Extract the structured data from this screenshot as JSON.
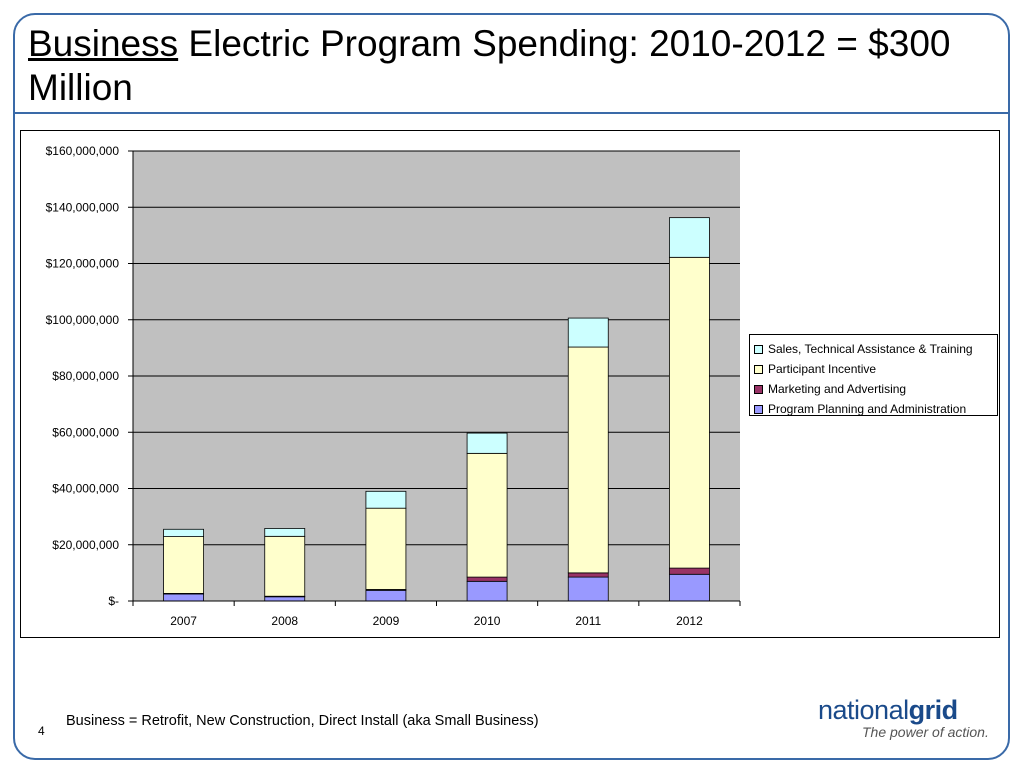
{
  "slide": {
    "title_underlined": "Business",
    "title_rest": " Electric Program Spending: 2010-2012 = $300 Million",
    "footnote": "Business = Retrofit, New Construction, Direct Install (aka Small Business)",
    "page_number": "4"
  },
  "logo": {
    "brand_regular": "national",
    "brand_bold": "grid",
    "tagline": "The power of action."
  },
  "colors": {
    "frame": "#3a6aa8",
    "plot_background": "#c0c0c0",
    "gridline": "#000000"
  },
  "chart_data": {
    "type": "bar",
    "stacked": true,
    "title": "",
    "xlabel": "",
    "ylabel": "",
    "categories": [
      "2007",
      "2008",
      "2009",
      "2010",
      "2011",
      "2012"
    ],
    "ylim": [
      0,
      160000000
    ],
    "yticks": [
      0,
      20000000,
      40000000,
      60000000,
      80000000,
      100000000,
      120000000,
      140000000,
      160000000
    ],
    "ytick_labels": [
      "$-",
      "$20,000,000",
      "$40,000,000",
      "$60,000,000",
      "$80,000,000",
      "$100,000,000",
      "$120,000,000",
      "$140,000,000",
      "$160,000,000"
    ],
    "grid": true,
    "legend_position": "right",
    "series": [
      {
        "name": "Program Planning and Administration",
        "color": "#9999ff",
        "values": [
          2500000,
          1500000,
          3800000,
          7000000,
          8500000,
          9500000
        ]
      },
      {
        "name": "Marketing and Advertising",
        "color": "#993366",
        "values": [
          200000,
          200000,
          300000,
          1500000,
          1500000,
          2200000
        ]
      },
      {
        "name": "Participant Incentive",
        "color": "#ffffcc",
        "values": [
          20200000,
          21300000,
          28900000,
          44000000,
          80300000,
          110500000
        ]
      },
      {
        "name": "Sales, Technical Assistance & Training",
        "color": "#ccffff",
        "values": [
          2600000,
          2800000,
          6000000,
          7200000,
          10300000,
          14100000
        ]
      }
    ]
  }
}
